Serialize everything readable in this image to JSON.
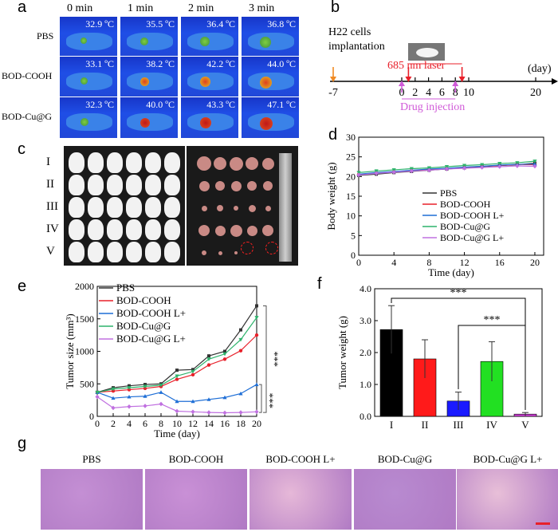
{
  "panel_letters": {
    "a": "a",
    "b": "b",
    "c": "c",
    "d": "d",
    "e": "e",
    "f": "f",
    "g": "g"
  },
  "panel_a": {
    "columns": [
      "0 min",
      "1 min",
      "2 min",
      "3 min"
    ],
    "rows": [
      {
        "label": "PBS",
        "temps": [
          "32.9 ºC",
          "35.5 ºC",
          "36.4 ºC",
          "36.8 ºC"
        ]
      },
      {
        "label": "BOD-COOH",
        "temps": [
          "33.1 ºC",
          "38.2 ºC",
          "42.2 ºC",
          "44.0 ºC"
        ]
      },
      {
        "label": "BOD-Cu@G",
        "temps": [
          "32.3 ºC",
          "40.0 ºC",
          "43.3 ºC",
          "47.1 ºC"
        ]
      }
    ]
  },
  "panel_b": {
    "implant_label_1": "H22 cells",
    "implant_label_2": "implantation",
    "laser_label": "685 nm laser",
    "drug_label": "Drug injection",
    "unit_label": "(day)",
    "ticks": [
      "-7",
      "0",
      "2",
      "4",
      "6",
      "8",
      "10",
      "20"
    ],
    "colors": {
      "implant": "#f08a24",
      "laser": "#e8202a",
      "drug": "#d05ad8"
    }
  },
  "panel_c": {
    "groups": [
      "I",
      "II",
      "III",
      "IV",
      "V"
    ]
  },
  "panel_g": {
    "captions": [
      "PBS",
      "BOD-COOH",
      "BOD-COOH L+",
      "BOD-Cu@G",
      "BOD-Cu@G L+"
    ]
  },
  "chart_data": [
    {
      "type": "line",
      "panel": "d",
      "xlabel": "Time (day)",
      "ylabel": "Body weight (g)",
      "xlim": [
        0,
        21
      ],
      "ylim": [
        0,
        30
      ],
      "xticks": [
        "0",
        "4",
        "8",
        "12",
        "16",
        "20"
      ],
      "yticks": [
        "0",
        "5",
        "10",
        "15",
        "20",
        "25",
        "30"
      ],
      "x": [
        0,
        2,
        4,
        6,
        8,
        10,
        12,
        14,
        16,
        18,
        20
      ],
      "legend_position": "bottom-right",
      "series": [
        {
          "name": "PBS",
          "color": "#333333",
          "values": [
            20.3,
            20.6,
            21.0,
            21.3,
            21.6,
            21.9,
            22.2,
            22.5,
            22.8,
            23.0,
            23.4
          ]
        },
        {
          "name": "BOD-COOH",
          "color": "#e8202a",
          "values": [
            20.5,
            20.9,
            21.2,
            21.5,
            21.8,
            22.0,
            22.3,
            22.6,
            22.8,
            23.1,
            23.0
          ]
        },
        {
          "name": "BOD-COOH L+",
          "color": "#1f6fd6",
          "values": [
            20.6,
            21.0,
            21.3,
            21.6,
            21.9,
            22.1,
            22.4,
            22.6,
            22.9,
            23.1,
            23.2
          ]
        },
        {
          "name": "BOD-Cu@G",
          "color": "#2db36b",
          "values": [
            21.0,
            21.4,
            21.7,
            22.0,
            22.2,
            22.5,
            22.8,
            23.0,
            23.3,
            23.5,
            23.9
          ]
        },
        {
          "name": "BOD-Cu@G L+",
          "color": "#c070e0",
          "values": [
            20.4,
            20.8,
            21.1,
            21.4,
            21.6,
            21.9,
            22.1,
            22.3,
            22.5,
            22.7,
            22.6
          ]
        }
      ]
    },
    {
      "type": "line",
      "panel": "e",
      "xlabel": "Time (day)",
      "ylabel": "Tumor size (mm³)",
      "xlim": [
        0,
        20
      ],
      "ylim": [
        0,
        2000
      ],
      "xticks": [
        "0",
        "2",
        "4",
        "6",
        "8",
        "10",
        "12",
        "14",
        "16",
        "18",
        "20"
      ],
      "yticks": [
        "0",
        "500",
        "1000",
        "1500",
        "2000"
      ],
      "x": [
        0,
        2,
        4,
        6,
        8,
        10,
        12,
        14,
        16,
        18,
        20
      ],
      "legend_position": "top-left",
      "significance": [
        "***",
        "***"
      ],
      "series": [
        {
          "name": "PBS",
          "color": "#333333",
          "values": [
            370,
            440,
            470,
            490,
            500,
            710,
            720,
            930,
            1000,
            1330,
            1700
          ]
        },
        {
          "name": "BOD-COOH",
          "color": "#e8202a",
          "values": [
            370,
            390,
            410,
            430,
            460,
            570,
            640,
            790,
            880,
            1010,
            1250
          ]
        },
        {
          "name": "BOD-COOH L+",
          "color": "#1f6fd6",
          "values": [
            370,
            280,
            300,
            310,
            370,
            230,
            230,
            260,
            290,
            350,
            490
          ]
        },
        {
          "name": "BOD-Cu@G",
          "color": "#2db36b",
          "values": [
            370,
            420,
            440,
            460,
            480,
            620,
            690,
            880,
            960,
            1180,
            1520
          ]
        },
        {
          "name": "BOD-Cu@G L+",
          "color": "#c070e0",
          "values": [
            300,
            130,
            150,
            160,
            190,
            80,
            70,
            60,
            55,
            60,
            70
          ]
        }
      ]
    },
    {
      "type": "bar",
      "panel": "f",
      "ylabel": "Tumor weight (g)",
      "ylim": [
        0,
        4.0
      ],
      "yticks": [
        "0.0",
        "1.0",
        "2.0",
        "3.0",
        "4.0"
      ],
      "categories": [
        "I",
        "II",
        "III",
        "IV",
        "V"
      ],
      "values": [
        2.72,
        1.8,
        0.48,
        1.72,
        0.07
      ],
      "errors": [
        0.75,
        0.6,
        0.28,
        0.62,
        0.05
      ],
      "colors": [
        "#000000",
        "#ff1a1a",
        "#1a1aff",
        "#22e022",
        "#d040d8"
      ],
      "significance": [
        "***",
        "***"
      ]
    }
  ]
}
